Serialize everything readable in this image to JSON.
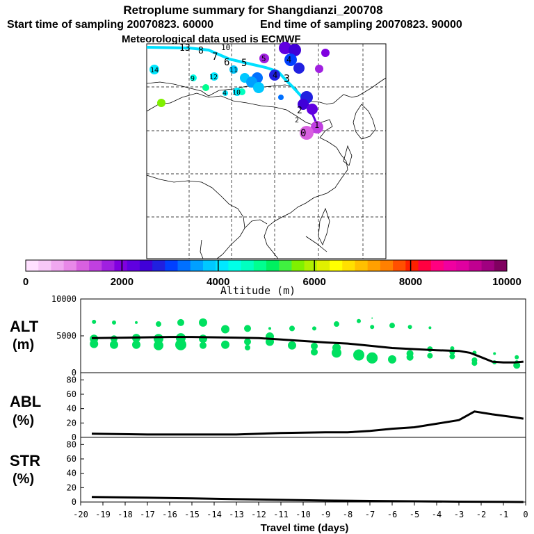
{
  "header": {
    "title": "Retroplume summary for Shangdianzi_200708",
    "start_label": "Start time of sampling 20070823. 60000",
    "end_label": "End time of sampling 20070823. 90000",
    "met_label": "Meteorological data used is ECMWF"
  },
  "colorbar": {
    "axis_label": "Altitude (m)",
    "ticks": [
      "0",
      "2000",
      "4000",
      "6000",
      "8000",
      "10000"
    ],
    "colors": [
      "#ffe0ff",
      "#f8c8f8",
      "#f0a8f0",
      "#e888e8",
      "#d860e0",
      "#c040e0",
      "#a020e0",
      "#8000e0",
      "#6000e0",
      "#4000d8",
      "#2020e0",
      "#0040ff",
      "#0070ff",
      "#00a0ff",
      "#00c8ff",
      "#00e8ff",
      "#00ffe8",
      "#00ffc0",
      "#00ff90",
      "#00f060",
      "#40f040",
      "#80f000",
      "#b0f000",
      "#e0f000",
      "#ffff00",
      "#ffe000",
      "#ffc000",
      "#ffa000",
      "#ff8000",
      "#ff5000",
      "#ff2000",
      "#ff0040",
      "#ff0080",
      "#f000a0",
      "#e000a0",
      "#c00090",
      "#a00080",
      "#800060"
    ]
  },
  "map": {
    "trajectory_color": "#00e0ff",
    "path_color": "#8000e0",
    "labels": [
      "13",
      "0",
      "8",
      "7",
      "6",
      "5",
      "4",
      "3",
      "2",
      "1",
      "14",
      "9",
      "12",
      "11",
      "10",
      "4",
      "10"
    ]
  },
  "chart_data": [
    {
      "type": "scatter",
      "name": "ALT",
      "ylabel": "ALT (m)",
      "ylim": [
        0,
        10000
      ],
      "yticks": [
        "0",
        "5000",
        "10000"
      ],
      "xlim": [
        -20,
        0
      ],
      "line_color": "#000000",
      "dot_color": "#00e060",
      "mean_line": {
        "x": [
          -19.5,
          -18,
          -17,
          -16,
          -15,
          -14,
          -13,
          -12,
          -11,
          -10,
          -9,
          -8,
          -7,
          -6,
          -5,
          -4,
          -3,
          -2.5,
          -2,
          -1.5,
          -1,
          -0.5,
          -0.1
        ],
        "y": [
          4700,
          4750,
          4800,
          4850,
          4850,
          4800,
          4750,
          4700,
          4500,
          4300,
          4100,
          3950,
          3650,
          3350,
          3200,
          3050,
          2950,
          2700,
          2100,
          1500,
          1400,
          1400,
          1500
        ]
      },
      "dots": [
        {
          "x": -19.4,
          "y": 6900,
          "s": 3
        },
        {
          "x": -19.4,
          "y": 4600,
          "s": 6
        },
        {
          "x": -19.4,
          "y": 3900,
          "s": 6
        },
        {
          "x": -18.5,
          "y": 6800,
          "s": 3
        },
        {
          "x": -18.5,
          "y": 4600,
          "s": 5
        },
        {
          "x": -18.5,
          "y": 3800,
          "s": 6
        },
        {
          "x": -17.5,
          "y": 6800,
          "s": 2
        },
        {
          "x": -17.5,
          "y": 4700,
          "s": 6
        },
        {
          "x": -17.5,
          "y": 3800,
          "s": 6
        },
        {
          "x": -16.5,
          "y": 6600,
          "s": 4
        },
        {
          "x": -16.5,
          "y": 4600,
          "s": 7
        },
        {
          "x": -16.5,
          "y": 3700,
          "s": 7
        },
        {
          "x": -15.5,
          "y": 6800,
          "s": 5
        },
        {
          "x": -15.5,
          "y": 4700,
          "s": 7
        },
        {
          "x": -15.5,
          "y": 3800,
          "s": 8
        },
        {
          "x": -14.5,
          "y": 6800,
          "s": 6
        },
        {
          "x": -14.5,
          "y": 4600,
          "s": 6
        },
        {
          "x": -14.5,
          "y": 3700,
          "s": 5
        },
        {
          "x": -13.5,
          "y": 5900,
          "s": 6
        },
        {
          "x": -13.5,
          "y": 3800,
          "s": 6
        },
        {
          "x": -12.5,
          "y": 6000,
          "s": 5
        },
        {
          "x": -12.5,
          "y": 4200,
          "s": 5
        },
        {
          "x": -12.5,
          "y": 3400,
          "s": 4
        },
        {
          "x": -11.5,
          "y": 6000,
          "s": 2
        },
        {
          "x": -11.5,
          "y": 4900,
          "s": 6
        },
        {
          "x": -11.5,
          "y": 4200,
          "s": 6
        },
        {
          "x": -10.5,
          "y": 6000,
          "s": 4
        },
        {
          "x": -10.5,
          "y": 3700,
          "s": 6
        },
        {
          "x": -9.5,
          "y": 6000,
          "s": 3
        },
        {
          "x": -9.5,
          "y": 3600,
          "s": 5
        },
        {
          "x": -9.5,
          "y": 2800,
          "s": 5
        },
        {
          "x": -8.5,
          "y": 6600,
          "s": 4
        },
        {
          "x": -8.5,
          "y": 3400,
          "s": 6
        },
        {
          "x": -8.5,
          "y": 2700,
          "s": 7
        },
        {
          "x": -7.5,
          "y": 7000,
          "s": 3
        },
        {
          "x": -7.5,
          "y": 2400,
          "s": 8
        },
        {
          "x": -6.9,
          "y": 7400,
          "s": 1
        },
        {
          "x": -6.9,
          "y": 6200,
          "s": 3
        },
        {
          "x": -6.9,
          "y": 2000,
          "s": 8
        },
        {
          "x": -6.0,
          "y": 6400,
          "s": 4
        },
        {
          "x": -6.0,
          "y": 1800,
          "s": 6
        },
        {
          "x": -5.2,
          "y": 6200,
          "s": 3
        },
        {
          "x": -5.2,
          "y": 2600,
          "s": 5
        },
        {
          "x": -5.2,
          "y": 2100,
          "s": 5
        },
        {
          "x": -4.3,
          "y": 6100,
          "s": 2
        },
        {
          "x": -4.3,
          "y": 3200,
          "s": 4
        },
        {
          "x": -4.3,
          "y": 2300,
          "s": 4
        },
        {
          "x": -3.3,
          "y": 3300,
          "s": 3
        },
        {
          "x": -3.3,
          "y": 2800,
          "s": 4
        },
        {
          "x": -3.3,
          "y": 2200,
          "s": 4
        },
        {
          "x": -2.3,
          "y": 2700,
          "s": 3
        },
        {
          "x": -2.3,
          "y": 1700,
          "s": 4
        },
        {
          "x": -2.3,
          "y": 1300,
          "s": 4
        },
        {
          "x": -1.4,
          "y": 2600,
          "s": 2
        },
        {
          "x": -1.4,
          "y": 1400,
          "s": 3
        },
        {
          "x": -0.4,
          "y": 2100,
          "s": 3
        },
        {
          "x": -0.4,
          "y": 1400,
          "s": 3
        },
        {
          "x": -0.4,
          "y": 1000,
          "s": 5
        }
      ]
    },
    {
      "type": "line",
      "name": "ABL",
      "ylabel": "ABL (%)",
      "ylim": [
        0,
        90
      ],
      "yticks": [
        "0",
        "20",
        "40",
        "60",
        "80"
      ],
      "x": [
        -19.5,
        -17,
        -15,
        -13,
        -11,
        -9,
        -8,
        -7,
        -6,
        -5,
        -4,
        -3,
        -2.3,
        -1.5,
        -0.5,
        -0.1
      ],
      "y": [
        5,
        4,
        4,
        4,
        6,
        7,
        7,
        9,
        12,
        14,
        19,
        24,
        36,
        32,
        28,
        26
      ]
    },
    {
      "type": "line",
      "name": "STR",
      "ylabel": "STR (%)",
      "ylim": [
        0,
        90
      ],
      "yticks": [
        "0",
        "20",
        "40",
        "60",
        "80"
      ],
      "x": [
        -19.5,
        -17,
        -15,
        -13,
        -11,
        -9,
        -7,
        -5,
        -3,
        -1,
        -0.1
      ],
      "y": [
        7,
        6,
        5,
        4,
        3,
        2,
        1.5,
        1,
        0.5,
        0.2,
        0
      ]
    }
  ],
  "xaxis": {
    "label": "Travel time (days)",
    "ticks": [
      "-20",
      "-19",
      "-18",
      "-17",
      "-16",
      "-15",
      "-14",
      "-13",
      "-12",
      "-11",
      "-10",
      "-9",
      "-8",
      "-7",
      "-6",
      "-5",
      "-4",
      "-3",
      "-2",
      "-1",
      "0"
    ]
  },
  "panel_labels": {
    "alt_top": "ALT",
    "alt_bottom": "(m)",
    "abl_top": "ABL",
    "abl_bottom": "(%)",
    "str_top": "STR",
    "str_bottom": "(%)"
  }
}
